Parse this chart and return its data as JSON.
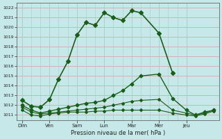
{
  "title": "",
  "xlabel": "Pression niveau de la mer( hPa )",
  "ylabel": "",
  "bg_color": "#c6e8e8",
  "plot_bg_color": "#c6e8e8",
  "line_color": "#1a5c1a",
  "grid_color_h": "#d8a8a8",
  "grid_color_v": "#aacaca",
  "ylim": [
    1010.5,
    1022.5
  ],
  "yticks": [
    1011,
    1012,
    1013,
    1014,
    1015,
    1016,
    1017,
    1018,
    1019,
    1020,
    1021,
    1022
  ],
  "days": [
    "Dim",
    "Ven",
    "Sam",
    "Lun",
    "Mar",
    "Mer",
    "Jeu"
  ],
  "day_positions": [
    0,
    1,
    2,
    3,
    4,
    5,
    6
  ],
  "xlim": [
    -0.2,
    7.2
  ],
  "series": [
    {
      "x": [
        0,
        0.33,
        0.67,
        1.0,
        1.33,
        1.67,
        2.0,
        2.33,
        2.67,
        3.0,
        3.33,
        3.67,
        4.0,
        4.33,
        5.0,
        5.5
      ],
      "y": [
        1012.5,
        1011.9,
        1011.8,
        1012.6,
        1014.7,
        1016.5,
        1019.2,
        1020.5,
        1020.2,
        1021.5,
        1021.0,
        1020.7,
        1021.7,
        1021.5,
        1019.4,
        1015.3
      ],
      "marker": "D",
      "markersize": 3,
      "linewidth": 1.2
    },
    {
      "x": [
        0,
        0.33,
        0.67,
        1.0,
        1.33,
        1.67,
        2.0,
        2.33,
        2.67,
        3.0,
        3.33,
        3.67,
        4.0,
        4.33,
        5.0,
        5.5,
        6.0,
        6.33,
        6.67,
        7.0
      ],
      "y": [
        1012.0,
        1011.5,
        1011.2,
        1011.4,
        1011.6,
        1011.8,
        1012.0,
        1012.2,
        1012.3,
        1012.5,
        1013.0,
        1013.5,
        1014.2,
        1015.0,
        1015.2,
        1012.7,
        1011.5,
        1011.0,
        1011.3,
        1011.5
      ],
      "marker": "D",
      "markersize": 2.5,
      "linewidth": 1.0
    },
    {
      "x": [
        0,
        0.33,
        0.67,
        1.0,
        1.33,
        1.67,
        2.0,
        2.33,
        2.67,
        3.0,
        3.33,
        3.67,
        4.0,
        4.33,
        5.0,
        5.5,
        6.0,
        6.33,
        6.67,
        7.0
      ],
      "y": [
        1011.8,
        1011.3,
        1011.1,
        1011.2,
        1011.3,
        1011.4,
        1011.5,
        1011.6,
        1011.7,
        1011.8,
        1012.0,
        1012.2,
        1012.4,
        1012.5,
        1012.6,
        1011.5,
        1011.2,
        1011.0,
        1011.2,
        1011.5
      ],
      "marker": "D",
      "markersize": 2,
      "linewidth": 0.8
    },
    {
      "x": [
        0,
        0.33,
        0.67,
        1.0,
        1.33,
        1.67,
        2.0,
        2.33,
        2.67,
        3.0,
        3.33,
        3.67,
        4.0,
        4.33,
        5.0,
        5.5,
        6.0,
        6.33,
        6.67,
        7.0
      ],
      "y": [
        1011.5,
        1011.0,
        1010.9,
        1011.1,
        1011.2,
        1011.3,
        1011.3,
        1011.3,
        1011.4,
        1011.4,
        1011.5,
        1011.5,
        1011.5,
        1011.5,
        1011.5,
        1011.2,
        1011.0,
        1010.9,
        1011.1,
        1011.4
      ],
      "marker": "D",
      "markersize": 2,
      "linewidth": 0.8
    }
  ]
}
